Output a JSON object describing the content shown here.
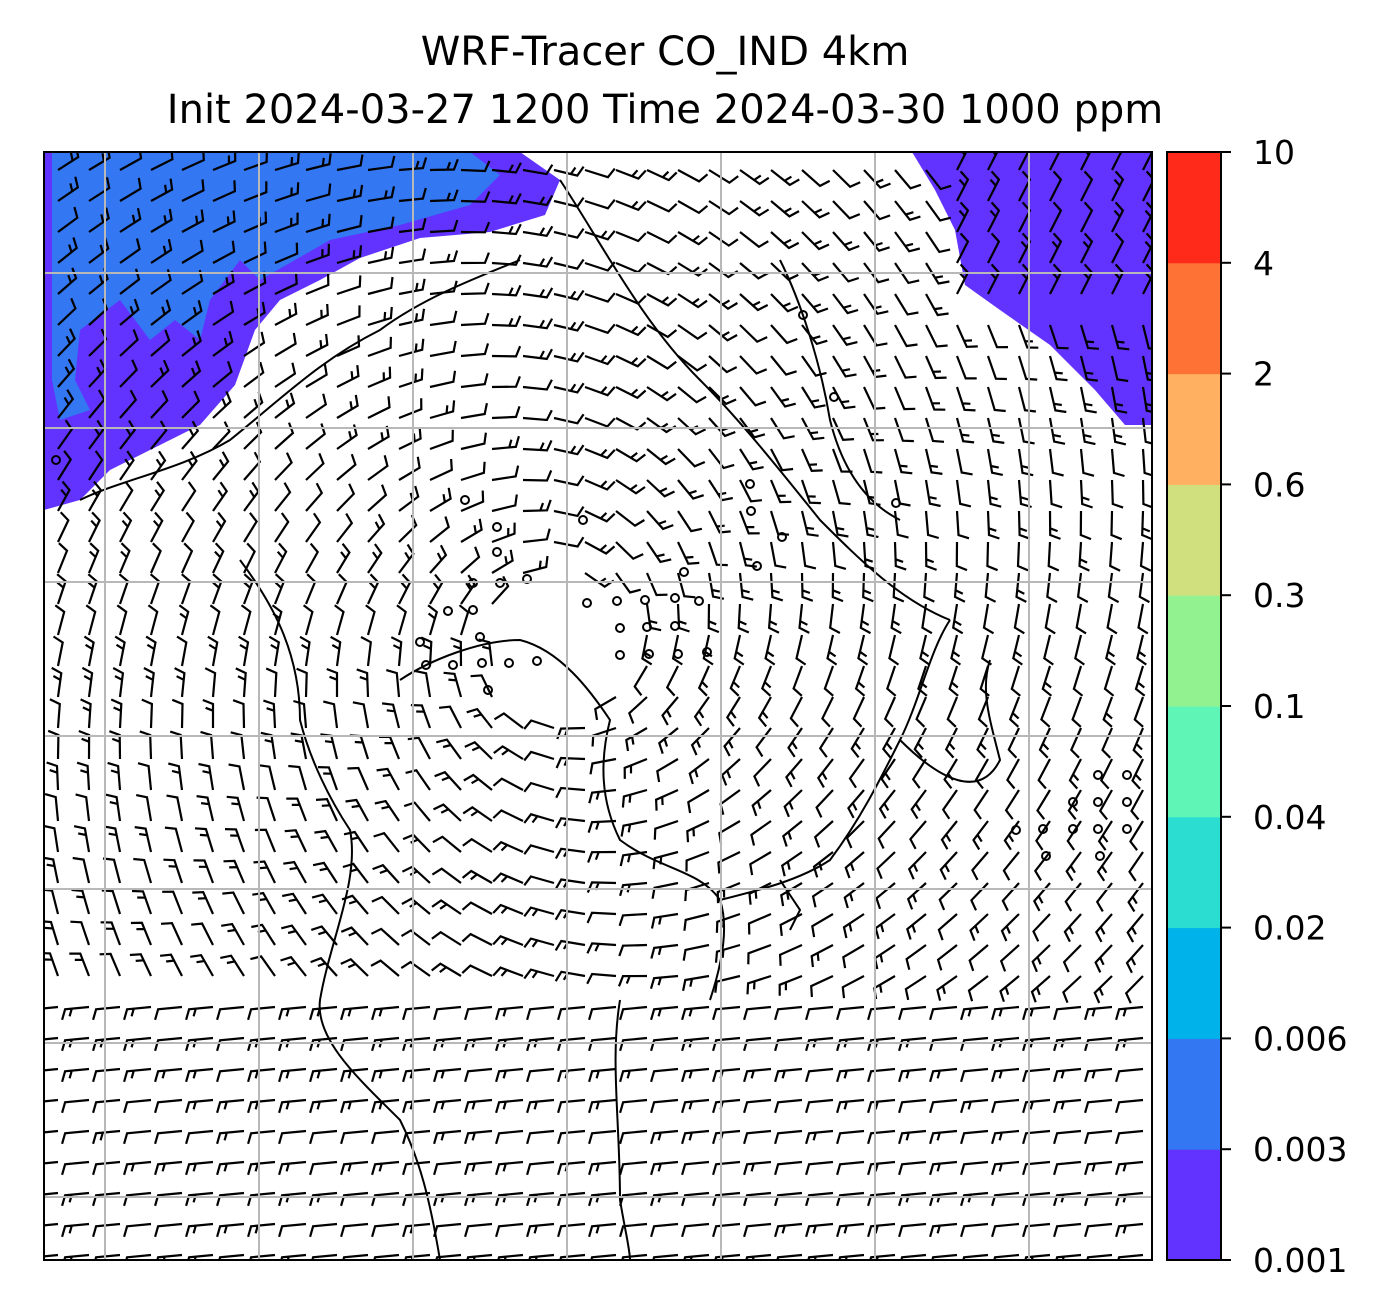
{
  "title": {
    "line1": "WRF-Tracer CO_IND 4km",
    "line2": "Init 2024-03-27 1200 Time 2024-03-30 1000 ppm"
  },
  "colorbar": {
    "levels": [
      "0.001",
      "0.003",
      "0.006",
      "0.02",
      "0.04",
      "0.1",
      "0.3",
      "0.6",
      "2",
      "4",
      "10"
    ],
    "colors": [
      "#6233ff",
      "#3377f2",
      "#00b2ea",
      "#2bdcd0",
      "#5ef5b6",
      "#92f28f",
      "#d0e07f",
      "#ffb060",
      "#ff7236",
      "#ff2a1a"
    ]
  },
  "map": {
    "variable": "CO_IND tracer",
    "units": "ppm",
    "background": "#ffffff",
    "gridline_color": "#b8b8b8",
    "overlays": [
      "coastlines",
      "country-borders",
      "wind-barbs",
      "lat-lon-gridlines"
    ]
  }
}
